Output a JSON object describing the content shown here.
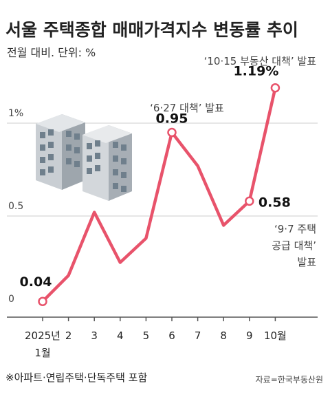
{
  "chart_data": {
    "type": "line",
    "title": "서울 주택종합 매매가격지수 변동률 추이",
    "subtitle": "전월 대비. 단위: %",
    "categories": [
      "2025년 1월",
      "2",
      "3",
      "4",
      "5",
      "6",
      "7",
      "8",
      "9",
      "10월"
    ],
    "tick_labels": [
      {
        "line1": "2025년",
        "line2": "1월"
      },
      {
        "line1": "2",
        "line2": ""
      },
      {
        "line1": "3",
        "line2": ""
      },
      {
        "line1": "4",
        "line2": ""
      },
      {
        "line1": "5",
        "line2": ""
      },
      {
        "line1": "6",
        "line2": ""
      },
      {
        "line1": "7",
        "line2": ""
      },
      {
        "line1": "8",
        "line2": ""
      },
      {
        "line1": "9",
        "line2": ""
      },
      {
        "line1": "10월",
        "line2": ""
      }
    ],
    "series": [
      {
        "values": [
          0.04,
          0.18,
          0.52,
          0.25,
          0.38,
          0.95,
          0.77,
          0.45,
          0.58,
          1.19
        ]
      }
    ],
    "ylim": [
      0,
      1.25
    ],
    "y_ticks": [
      {
        "value": 0,
        "label": "0"
      },
      {
        "value": 0.5,
        "label": "0.5"
      },
      {
        "value": 1.0,
        "label": "1%"
      }
    ],
    "data_labels": [
      {
        "index": 0,
        "text": "0.04"
      },
      {
        "index": 5,
        "text": "0.95"
      },
      {
        "index": 8,
        "text": "0.58"
      },
      {
        "index": 9,
        "text": "1.19%"
      }
    ],
    "annotations": [
      {
        "index": 5,
        "lines": [
          "‘6·27 대책’ 발표"
        ]
      },
      {
        "index": 8,
        "lines": [
          "‘9·7 주택",
          "공급 대책’",
          "발표"
        ]
      },
      {
        "index": 9,
        "lines": [
          "‘10·15 부동산 대책’ 발표"
        ]
      }
    ],
    "grid": true,
    "colors": {
      "line": "#e8536b",
      "grid": "#cccccc",
      "axis": "#555555"
    }
  },
  "footnote": "※아파트·연립주택·단독주택 포함",
  "source": "자료=한국부동산원"
}
